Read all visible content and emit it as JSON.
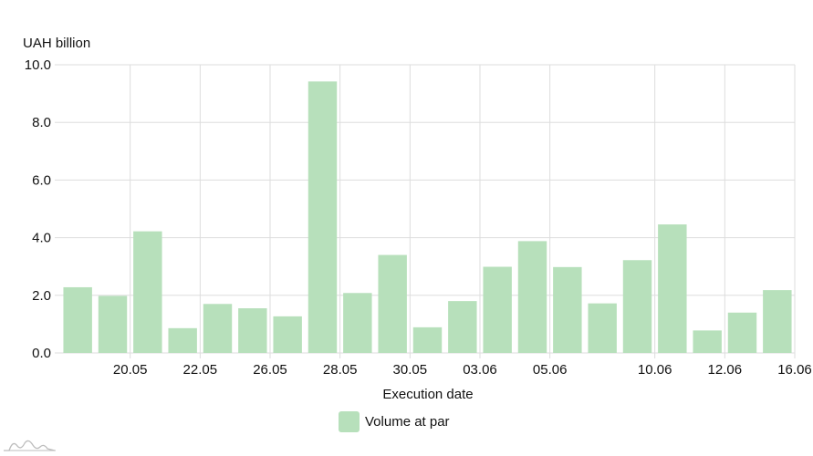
{
  "chart_data": {
    "type": "bar",
    "ylabel": "UAH billion",
    "xlabel": "Execution date",
    "ylim": [
      0,
      10
    ],
    "yticks": [
      "0.0",
      "2.0",
      "4.0",
      "6.0",
      "8.0",
      "10.0"
    ],
    "grid": true,
    "legend_placement": "bottom",
    "series": [
      {
        "name": "Volume at par",
        "color": "#b7e0bb",
        "values": [
          2.28,
          1.98,
          4.22,
          0.86,
          1.7,
          1.55,
          1.27,
          9.42,
          2.08,
          3.4,
          0.89,
          1.8,
          2.99,
          3.88,
          2.98,
          1.72,
          3.22,
          4.46,
          0.78,
          1.4,
          2.18
        ]
      }
    ],
    "x_tick_labels": [
      {
        "label": "20.05",
        "after_bar": 1
      },
      {
        "label": "22.05",
        "after_bar": 3
      },
      {
        "label": "26.05",
        "after_bar": 5
      },
      {
        "label": "28.05",
        "after_bar": 7
      },
      {
        "label": "30.05",
        "after_bar": 9
      },
      {
        "label": "03.06",
        "after_bar": 11
      },
      {
        "label": "05.06",
        "after_bar": 13
      },
      {
        "label": "10.06",
        "after_bar": 16
      },
      {
        "label": "12.06",
        "after_bar": 18
      },
      {
        "label": "16.06",
        "after_bar": 20
      }
    ]
  }
}
